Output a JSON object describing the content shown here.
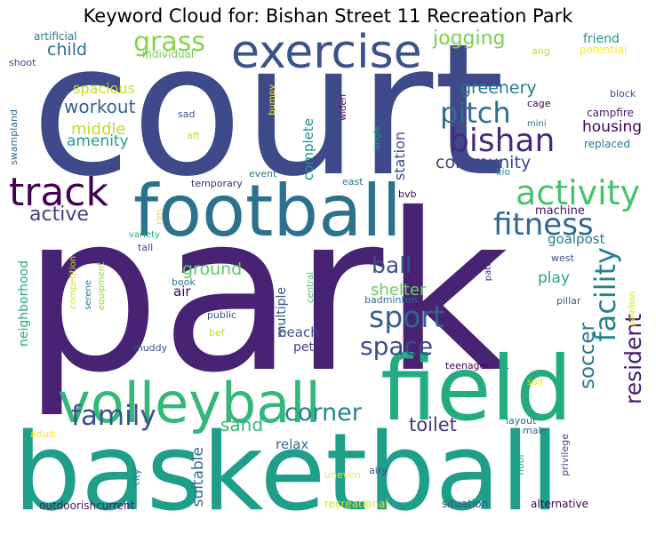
{
  "title": "Keyword Cloud for: Bishan Street 11 Recreation Park",
  "words": [
    {
      "text": "court",
      "color": "#3e4a89"
    },
    {
      "text": "park",
      "color": "#482374"
    },
    {
      "text": "basketball",
      "color": "#1f9e89"
    },
    {
      "text": "field",
      "color": "#25ab82"
    },
    {
      "text": "volleyball",
      "color": "#35b779"
    },
    {
      "text": "football",
      "color": "#2c728e"
    },
    {
      "text": "exercise",
      "color": "#3b528b"
    },
    {
      "text": "track",
      "color": "#440154"
    },
    {
      "text": "activity",
      "color": "#4ac16d"
    },
    {
      "text": "bishan",
      "color": "#472a7a"
    },
    {
      "text": "fitness",
      "color": "#31688e"
    },
    {
      "text": "facility",
      "color": "#26828e"
    },
    {
      "text": "sport",
      "color": "#33638d"
    },
    {
      "text": "pitch",
      "color": "#2e6e8e"
    },
    {
      "text": "family",
      "color": "#3b528b"
    },
    {
      "text": "grass",
      "color": "#84d44b"
    },
    {
      "text": "corner",
      "color": "#26828e"
    },
    {
      "text": "space",
      "color": "#3e4a89"
    },
    {
      "text": "resident",
      "color": "#481a6c"
    },
    {
      "text": "soccer",
      "color": "#2a788e"
    },
    {
      "text": "ball",
      "color": "#3b528b"
    },
    {
      "text": "active",
      "color": "#433e85"
    },
    {
      "text": "jogging",
      "color": "#7ad151"
    },
    {
      "text": "workout",
      "color": "#33638d"
    },
    {
      "text": "greenery",
      "color": "#2a788e"
    },
    {
      "text": "community",
      "color": "#414487"
    },
    {
      "text": "ground",
      "color": "#5ec962"
    },
    {
      "text": "shelter",
      "color": "#6ece58"
    },
    {
      "text": "sand",
      "color": "#35b779"
    },
    {
      "text": "toilet",
      "color": "#463480"
    },
    {
      "text": "child",
      "color": "#2d708e"
    },
    {
      "text": "middle",
      "color": "#bddf26"
    },
    {
      "text": "amenity",
      "color": "#1f9e89"
    },
    {
      "text": "housing",
      "color": "#440154"
    },
    {
      "text": "spacious",
      "color": "#c2df23"
    },
    {
      "text": "suitable",
      "color": "#31688e"
    },
    {
      "text": "play",
      "color": "#22a785"
    },
    {
      "text": "beach",
      "color": "#3b528b"
    },
    {
      "text": "pet",
      "color": "#433e85"
    },
    {
      "text": "relax",
      "color": "#31688e"
    },
    {
      "text": "air",
      "color": "#440154"
    },
    {
      "text": "goalpost",
      "color": "#2a788e"
    },
    {
      "text": "machine",
      "color": "#470d60"
    },
    {
      "text": "complete",
      "color": "#21918c"
    },
    {
      "text": "station",
      "color": "#3e4a89"
    },
    {
      "text": "multiple",
      "color": "#3b528b"
    },
    {
      "text": "neighborhood",
      "color": "#22a785"
    },
    {
      "text": "friend",
      "color": "#21918c"
    },
    {
      "text": "campfire",
      "color": "#481a6c"
    },
    {
      "text": "replaced",
      "color": "#2a788e"
    },
    {
      "text": "block",
      "color": "#3e4a89"
    },
    {
      "text": "cage",
      "color": "#440154"
    },
    {
      "text": "mini",
      "color": "#2d708e"
    },
    {
      "text": "kio",
      "color": "#21918c"
    },
    {
      "text": "individual",
      "color": "#6ece58"
    },
    {
      "text": "artificial",
      "color": "#2a788e"
    },
    {
      "text": "shoot",
      "color": "#3e4a89"
    },
    {
      "text": "swampland",
      "color": "#31688e"
    },
    {
      "text": "ang",
      "color": "#bddf26"
    },
    {
      "text": "potential",
      "color": "#fde725"
    },
    {
      "text": "sad",
      "color": "#3b528b"
    },
    {
      "text": "aft",
      "color": "#c8e020"
    },
    {
      "text": "bumpy",
      "color": "#fde725"
    },
    {
      "text": "widen",
      "color": "#440154"
    },
    {
      "text": "angle",
      "color": "#1f9e89"
    },
    {
      "text": "event",
      "color": "#2a788e"
    },
    {
      "text": "temporary",
      "color": "#472a7a"
    },
    {
      "text": "east",
      "color": "#2c728e"
    },
    {
      "text": "bvb",
      "color": "#440154"
    },
    {
      "text": "rim",
      "color": "#d8e219"
    },
    {
      "text": "variety",
      "color": "#20a486"
    },
    {
      "text": "tall",
      "color": "#3e4a89"
    },
    {
      "text": "west",
      "color": "#3b528b"
    },
    {
      "text": "patch",
      "color": "#482878"
    },
    {
      "text": "central",
      "color": "#4ac16d"
    },
    {
      "text": "badminton",
      "color": "#2c728e"
    },
    {
      "text": "pillar",
      "color": "#33638d"
    },
    {
      "text": "pavilion",
      "color": "#d0e11c"
    },
    {
      "text": "book",
      "color": "#2a788e"
    },
    {
      "text": "competition",
      "color": "#d2e21b"
    },
    {
      "text": "serene",
      "color": "#2a788e"
    },
    {
      "text": "equipment",
      "color": "#8fd744"
    },
    {
      "text": "public",
      "color": "#3b528b"
    },
    {
      "text": "bef",
      "color": "#c2df23"
    },
    {
      "text": "muddy",
      "color": "#3b528b"
    },
    {
      "text": "teenager",
      "color": "#440154"
    },
    {
      "text": "suit",
      "color": "#e5e419"
    },
    {
      "text": "layout",
      "color": "#31688e"
    },
    {
      "text": "male",
      "color": "#31688e"
    },
    {
      "text": "privilege",
      "color": "#3e4a89"
    },
    {
      "text": "floor",
      "color": "#22a785"
    },
    {
      "text": "adult",
      "color": "#fde725"
    },
    {
      "text": "city",
      "color": "#31688e"
    },
    {
      "text": "uneven",
      "color": "#fde725"
    },
    {
      "text": "airy",
      "color": "#3e4a89"
    },
    {
      "text": "outdoorishcurrent",
      "color": "#481a6c"
    },
    {
      "text": "recreational",
      "color": "#dde318"
    },
    {
      "text": "situation",
      "color": "#3b528b"
    },
    {
      "text": "alternative",
      "color": "#440154"
    }
  ]
}
